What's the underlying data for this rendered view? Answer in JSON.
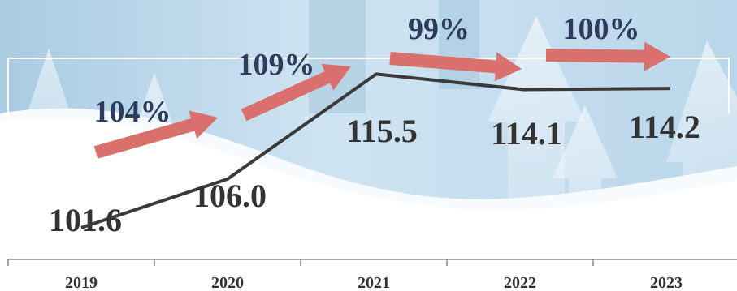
{
  "colors": {
    "line": "#3a3a3a",
    "arrow": "#d9706e",
    "value_text": "#333333",
    "percent_text": "#2e3b5e",
    "axis": "#888888"
  },
  "chart_data": {
    "type": "line",
    "categories": [
      "2019",
      "2020",
      "2021",
      "2022",
      "2023"
    ],
    "values": [
      101.6,
      106.0,
      115.5,
      114.1,
      114.2
    ],
    "value_labels": [
      "101.6",
      "106.0",
      "115.5",
      "114.1",
      "114.2"
    ],
    "growth_labels": [
      "104%",
      "109%",
      "99%",
      "100%"
    ],
    "title": "",
    "xlabel": "",
    "ylabel": "",
    "ylim": [
      98,
      120
    ],
    "grid": false,
    "legend": "none"
  }
}
